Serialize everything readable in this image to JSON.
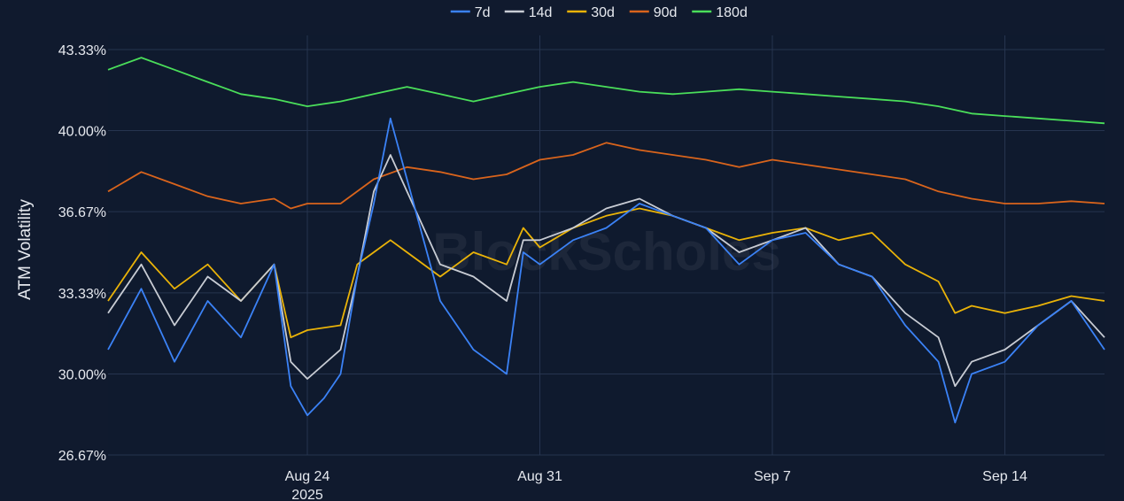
{
  "chart_data": {
    "type": "line",
    "ylabel": "ATM Volatility",
    "yticks": [
      "43.33%",
      "40.00%",
      "36.67%",
      "33.33%",
      "30.00%",
      "26.67%"
    ],
    "ytick_values": [
      43.33,
      40.0,
      36.67,
      33.33,
      30.0,
      26.67
    ],
    "ylim": [
      26.67,
      43.33
    ],
    "x_start": "2025-08-18",
    "x_end": "2025-09-17",
    "xticks": [
      {
        "label": "Aug 24",
        "sub": "2025",
        "date": "2025-08-24"
      },
      {
        "label": "Aug 31",
        "sub": "",
        "date": "2025-08-31"
      },
      {
        "label": "Sep 7",
        "sub": "",
        "date": "2025-09-07"
      },
      {
        "label": "Sep 14",
        "sub": "",
        "date": "2025-09-14"
      }
    ],
    "grid": true,
    "legend_position": "top-center",
    "watermark": "BlockScholes",
    "series": [
      {
        "name": "7d",
        "color": "#3b82f6",
        "points": [
          [
            "2025-08-18",
            31.0
          ],
          [
            "2025-08-19",
            33.5
          ],
          [
            "2025-08-20",
            30.5
          ],
          [
            "2025-08-21",
            33.0
          ],
          [
            "2025-08-22",
            31.5
          ],
          [
            "2025-08-23",
            34.5
          ],
          [
            "2025-08-23T12:00",
            29.5
          ],
          [
            "2025-08-24",
            28.3
          ],
          [
            "2025-08-24T12:00",
            29.0
          ],
          [
            "2025-08-25",
            30.0
          ],
          [
            "2025-08-25T12:00",
            34.0
          ],
          [
            "2025-08-26",
            37.0
          ],
          [
            "2025-08-26T12:00",
            40.5
          ],
          [
            "2025-08-27",
            38.0
          ],
          [
            "2025-08-28",
            33.0
          ],
          [
            "2025-08-28T12:00",
            32.0
          ],
          [
            "2025-08-29",
            31.0
          ],
          [
            "2025-08-29T12:00",
            30.5
          ],
          [
            "2025-08-30",
            30.0
          ],
          [
            "2025-08-30T12:00",
            35.0
          ],
          [
            "2025-08-31",
            34.5
          ],
          [
            "2025-09-01",
            35.5
          ],
          [
            "2025-09-02",
            36.0
          ],
          [
            "2025-09-03",
            37.0
          ],
          [
            "2025-09-04",
            36.5
          ],
          [
            "2025-09-05",
            36.0
          ],
          [
            "2025-09-06",
            34.5
          ],
          [
            "2025-09-07",
            35.5
          ],
          [
            "2025-09-08",
            35.8
          ],
          [
            "2025-09-09",
            34.5
          ],
          [
            "2025-09-10",
            34.0
          ],
          [
            "2025-09-11",
            32.0
          ],
          [
            "2025-09-12",
            30.5
          ],
          [
            "2025-09-12T12:00",
            28.0
          ],
          [
            "2025-09-13",
            30.0
          ],
          [
            "2025-09-14",
            30.5
          ],
          [
            "2025-09-15",
            32.0
          ],
          [
            "2025-09-16",
            33.0
          ],
          [
            "2025-09-17",
            31.0
          ]
        ]
      },
      {
        "name": "14d",
        "color": "#c8ccd4",
        "points": [
          [
            "2025-08-18",
            32.5
          ],
          [
            "2025-08-19",
            34.5
          ],
          [
            "2025-08-20",
            32.0
          ],
          [
            "2025-08-21",
            34.0
          ],
          [
            "2025-08-22",
            33.0
          ],
          [
            "2025-08-23",
            34.5
          ],
          [
            "2025-08-23T12:00",
            30.5
          ],
          [
            "2025-08-24",
            29.8
          ],
          [
            "2025-08-25",
            31.0
          ],
          [
            "2025-08-25T12:00",
            34.0
          ],
          [
            "2025-08-26",
            37.5
          ],
          [
            "2025-08-26T12:00",
            39.0
          ],
          [
            "2025-08-27",
            37.5
          ],
          [
            "2025-08-28",
            34.5
          ],
          [
            "2025-08-29",
            34.0
          ],
          [
            "2025-08-30",
            33.0
          ],
          [
            "2025-08-30T12:00",
            35.5
          ],
          [
            "2025-08-31",
            35.5
          ],
          [
            "2025-09-01",
            36.0
          ],
          [
            "2025-09-02",
            36.8
          ],
          [
            "2025-09-03",
            37.2
          ],
          [
            "2025-09-04",
            36.5
          ],
          [
            "2025-09-05",
            36.0
          ],
          [
            "2025-09-06",
            35.0
          ],
          [
            "2025-09-07",
            35.5
          ],
          [
            "2025-09-08",
            36.0
          ],
          [
            "2025-09-09",
            34.5
          ],
          [
            "2025-09-10",
            34.0
          ],
          [
            "2025-09-11",
            32.5
          ],
          [
            "2025-09-12",
            31.5
          ],
          [
            "2025-09-12T12:00",
            29.5
          ],
          [
            "2025-09-13",
            30.5
          ],
          [
            "2025-09-14",
            31.0
          ],
          [
            "2025-09-15",
            32.0
          ],
          [
            "2025-09-16",
            33.0
          ],
          [
            "2025-09-17",
            31.5
          ]
        ]
      },
      {
        "name": "30d",
        "color": "#eab308",
        "points": [
          [
            "2025-08-18",
            33.0
          ],
          [
            "2025-08-19",
            35.0
          ],
          [
            "2025-08-20",
            33.5
          ],
          [
            "2025-08-21",
            34.5
          ],
          [
            "2025-08-22",
            33.0
          ],
          [
            "2025-08-23",
            34.5
          ],
          [
            "2025-08-23T12:00",
            31.5
          ],
          [
            "2025-08-24",
            31.8
          ],
          [
            "2025-08-25",
            32.0
          ],
          [
            "2025-08-25T12:00",
            34.5
          ],
          [
            "2025-08-26",
            35.0
          ],
          [
            "2025-08-26T12:00",
            35.5
          ],
          [
            "2025-08-27",
            35.0
          ],
          [
            "2025-08-28",
            34.0
          ],
          [
            "2025-08-29",
            35.0
          ],
          [
            "2025-08-30",
            34.5
          ],
          [
            "2025-08-30T12:00",
            36.0
          ],
          [
            "2025-08-31",
            35.2
          ],
          [
            "2025-09-01",
            36.0
          ],
          [
            "2025-09-02",
            36.5
          ],
          [
            "2025-09-03",
            36.8
          ],
          [
            "2025-09-04",
            36.5
          ],
          [
            "2025-09-05",
            36.0
          ],
          [
            "2025-09-06",
            35.5
          ],
          [
            "2025-09-07",
            35.8
          ],
          [
            "2025-09-08",
            36.0
          ],
          [
            "2025-09-09",
            35.5
          ],
          [
            "2025-09-10",
            35.8
          ],
          [
            "2025-09-11",
            34.5
          ],
          [
            "2025-09-12",
            33.8
          ],
          [
            "2025-09-12T12:00",
            32.5
          ],
          [
            "2025-09-13",
            32.8
          ],
          [
            "2025-09-14",
            32.5
          ],
          [
            "2025-09-15",
            32.8
          ],
          [
            "2025-09-16",
            33.2
          ],
          [
            "2025-09-17",
            33.0
          ]
        ]
      },
      {
        "name": "90d",
        "color": "#d9641c",
        "points": [
          [
            "2025-08-18",
            37.5
          ],
          [
            "2025-08-19",
            38.3
          ],
          [
            "2025-08-20",
            37.8
          ],
          [
            "2025-08-21",
            37.3
          ],
          [
            "2025-08-22",
            37.0
          ],
          [
            "2025-08-23",
            37.2
          ],
          [
            "2025-08-23T12:00",
            36.8
          ],
          [
            "2025-08-24",
            37.0
          ],
          [
            "2025-08-25",
            37.0
          ],
          [
            "2025-08-26",
            38.0
          ],
          [
            "2025-08-27",
            38.5
          ],
          [
            "2025-08-28",
            38.3
          ],
          [
            "2025-08-29",
            38.0
          ],
          [
            "2025-08-30",
            38.2
          ],
          [
            "2025-08-31",
            38.8
          ],
          [
            "2025-09-01",
            39.0
          ],
          [
            "2025-09-02",
            39.5
          ],
          [
            "2025-09-03",
            39.2
          ],
          [
            "2025-09-04",
            39.0
          ],
          [
            "2025-09-05",
            38.8
          ],
          [
            "2025-09-06",
            38.5
          ],
          [
            "2025-09-07",
            38.8
          ],
          [
            "2025-09-08",
            38.6
          ],
          [
            "2025-09-09",
            38.4
          ],
          [
            "2025-09-10",
            38.2
          ],
          [
            "2025-09-11",
            38.0
          ],
          [
            "2025-09-12",
            37.5
          ],
          [
            "2025-09-13",
            37.2
          ],
          [
            "2025-09-14",
            37.0
          ],
          [
            "2025-09-15",
            37.0
          ],
          [
            "2025-09-16",
            37.1
          ],
          [
            "2025-09-17",
            37.0
          ]
        ]
      },
      {
        "name": "180d",
        "color": "#4ade5a",
        "points": [
          [
            "2025-08-18",
            42.5
          ],
          [
            "2025-08-19",
            43.0
          ],
          [
            "2025-08-20",
            42.5
          ],
          [
            "2025-08-21",
            42.0
          ],
          [
            "2025-08-22",
            41.5
          ],
          [
            "2025-08-23",
            41.3
          ],
          [
            "2025-08-24",
            41.0
          ],
          [
            "2025-08-25",
            41.2
          ],
          [
            "2025-08-26",
            41.5
          ],
          [
            "2025-08-27",
            41.8
          ],
          [
            "2025-08-28",
            41.5
          ],
          [
            "2025-08-29",
            41.2
          ],
          [
            "2025-08-30",
            41.5
          ],
          [
            "2025-08-31",
            41.8
          ],
          [
            "2025-09-01",
            42.0
          ],
          [
            "2025-09-02",
            41.8
          ],
          [
            "2025-09-03",
            41.6
          ],
          [
            "2025-09-04",
            41.5
          ],
          [
            "2025-09-05",
            41.6
          ],
          [
            "2025-09-06",
            41.7
          ],
          [
            "2025-09-07",
            41.6
          ],
          [
            "2025-09-08",
            41.5
          ],
          [
            "2025-09-09",
            41.4
          ],
          [
            "2025-09-10",
            41.3
          ],
          [
            "2025-09-11",
            41.2
          ],
          [
            "2025-09-12",
            41.0
          ],
          [
            "2025-09-13",
            40.7
          ],
          [
            "2025-09-14",
            40.6
          ],
          [
            "2025-09-15",
            40.5
          ],
          [
            "2025-09-16",
            40.4
          ],
          [
            "2025-09-17",
            40.3
          ]
        ]
      }
    ]
  }
}
